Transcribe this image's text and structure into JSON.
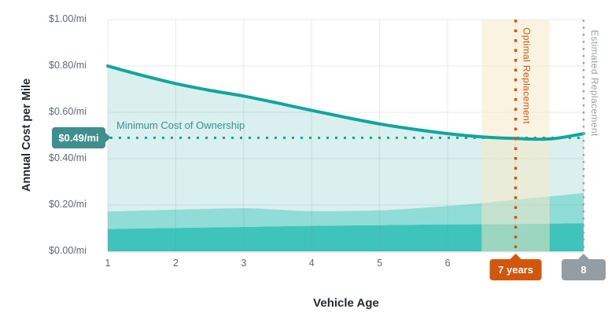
{
  "colors": {
    "teal_line": "#12a5a0",
    "area_light": "#d9f0ee",
    "area_mid": "#90dcd6",
    "area_dark": "#3fc4bc",
    "min_badge_bg": "#3e8f8e",
    "min_label_text": "#35948e",
    "orange": "#d2570c",
    "highlight_band": "#f7e7c4",
    "gray_badge_bg": "#949da4",
    "gray_dotted": "#9aa1a7",
    "grid": "#6c7a86",
    "axis_line": "#e0e4e7",
    "text_dark": "#222b33",
    "text_gray": "#5d6a75"
  },
  "y_axis": {
    "title": "Annual Cost per Mile",
    "tick_labels": [
      "$1.00/mi",
      "$0.80/mi",
      "$0.60/mi",
      "$0.40/mi",
      "$0.20/mi",
      "$0.00/mi"
    ],
    "tick_values": [
      1.0,
      0.8,
      0.6,
      0.4,
      0.2,
      0.0
    ]
  },
  "x_axis": {
    "title": "Vehicle Age",
    "tick_labels": [
      "1",
      "2",
      "3",
      "4",
      "5",
      "6"
    ],
    "tick_values": [
      1,
      2,
      3,
      4,
      5,
      6
    ]
  },
  "annotations": {
    "min_cost": {
      "badge": "$0.49/mi",
      "label": "Minimum Cost of Ownership",
      "value": 0.49
    },
    "optimal": {
      "label": "Optimal Replacement",
      "badge": "7 years",
      "year": 7,
      "band_from": 6.5,
      "band_to": 7.5
    },
    "estimated": {
      "label": "Estimated Replacement",
      "badge": "8 years",
      "year": 8
    }
  },
  "chart_data": {
    "type": "area",
    "title": "",
    "xlabel": "Vehicle Age",
    "ylabel": "Annual Cost per Mile",
    "xlim": [
      1,
      8
    ],
    "ylim": [
      0,
      1
    ],
    "x_ticks": [
      1,
      2,
      3,
      4,
      5,
      6,
      7,
      8
    ],
    "y_ticks": [
      0,
      0.2,
      0.4,
      0.6,
      0.8,
      1.0
    ],
    "grid": true,
    "series": [
      {
        "name": "total-cost-per-mile-line",
        "type": "line",
        "x": [
          1,
          1.5,
          2,
          2.5,
          3,
          3.5,
          4,
          4.5,
          5,
          5.5,
          6,
          6.5,
          7,
          7.5,
          8
        ],
        "y": [
          0.8,
          0.76,
          0.724,
          0.695,
          0.67,
          0.64,
          0.608,
          0.578,
          0.55,
          0.527,
          0.508,
          0.494,
          0.487,
          0.485,
          0.508
        ]
      },
      {
        "name": "stacked-lower-band-top",
        "type": "area",
        "x": [
          1,
          2,
          3,
          4,
          5,
          6,
          7,
          8
        ],
        "y": [
          0.096,
          0.101,
          0.105,
          0.11,
          0.113,
          0.116,
          0.118,
          0.121
        ]
      },
      {
        "name": "stacked-middle-band-top",
        "type": "area",
        "x": [
          1,
          2,
          3,
          3.5,
          4,
          5,
          6,
          6.5,
          7,
          7.5,
          8
        ],
        "y": [
          0.172,
          0.18,
          0.186,
          0.18,
          0.174,
          0.177,
          0.196,
          0.208,
          0.223,
          0.237,
          0.252
        ]
      }
    ],
    "annotations": {
      "min_cost_line": 0.49,
      "optimal_replacement_year": 7,
      "optimal_band": [
        6.5,
        7.5
      ],
      "estimated_replacement_year": 8
    }
  }
}
